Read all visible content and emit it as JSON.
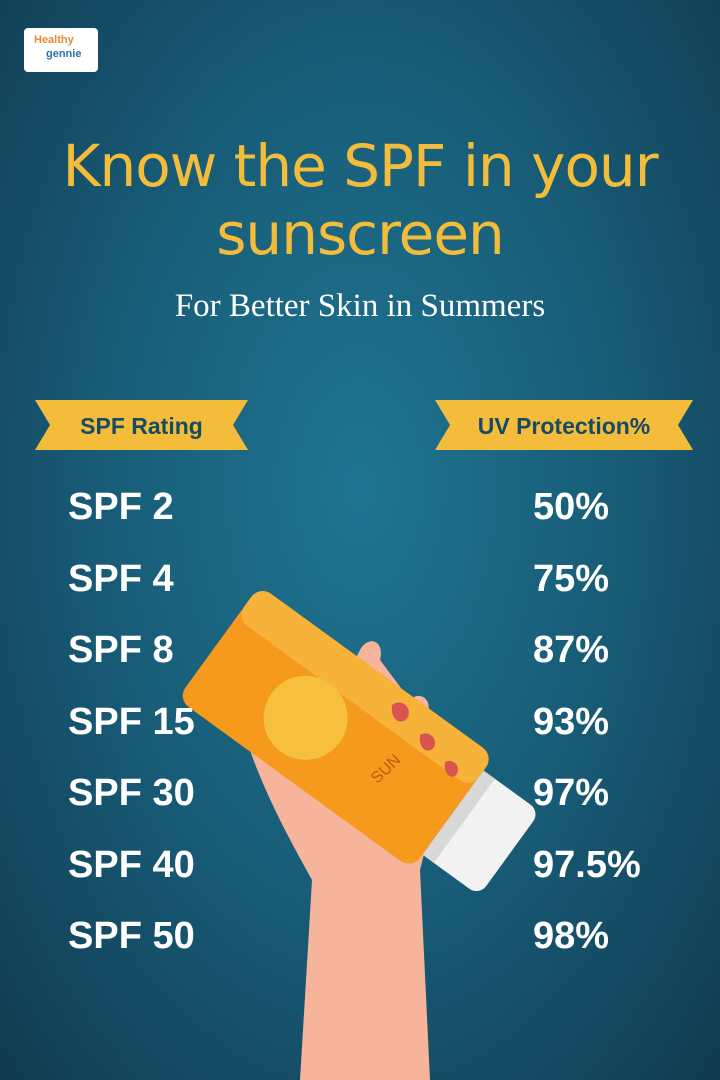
{
  "header": {
    "logo": [
      "Healthy",
      "gennie"
    ],
    "title": "Know the SPF in your sunscreen",
    "subtitle": "For Better Skin in Summers"
  },
  "table": {
    "headers": [
      "SPF Rating",
      "UV Protection%"
    ],
    "rows": [
      [
        "SPF 2",
        "50%"
      ],
      [
        "SPF 4",
        "75%"
      ],
      [
        "SPF 8",
        "87%"
      ],
      [
        "SPF 15",
        "93%"
      ],
      [
        "SPF 30",
        "97%"
      ],
      [
        "SPF 40",
        "97.5%"
      ],
      [
        "SPF 50",
        "98%"
      ]
    ]
  }
}
